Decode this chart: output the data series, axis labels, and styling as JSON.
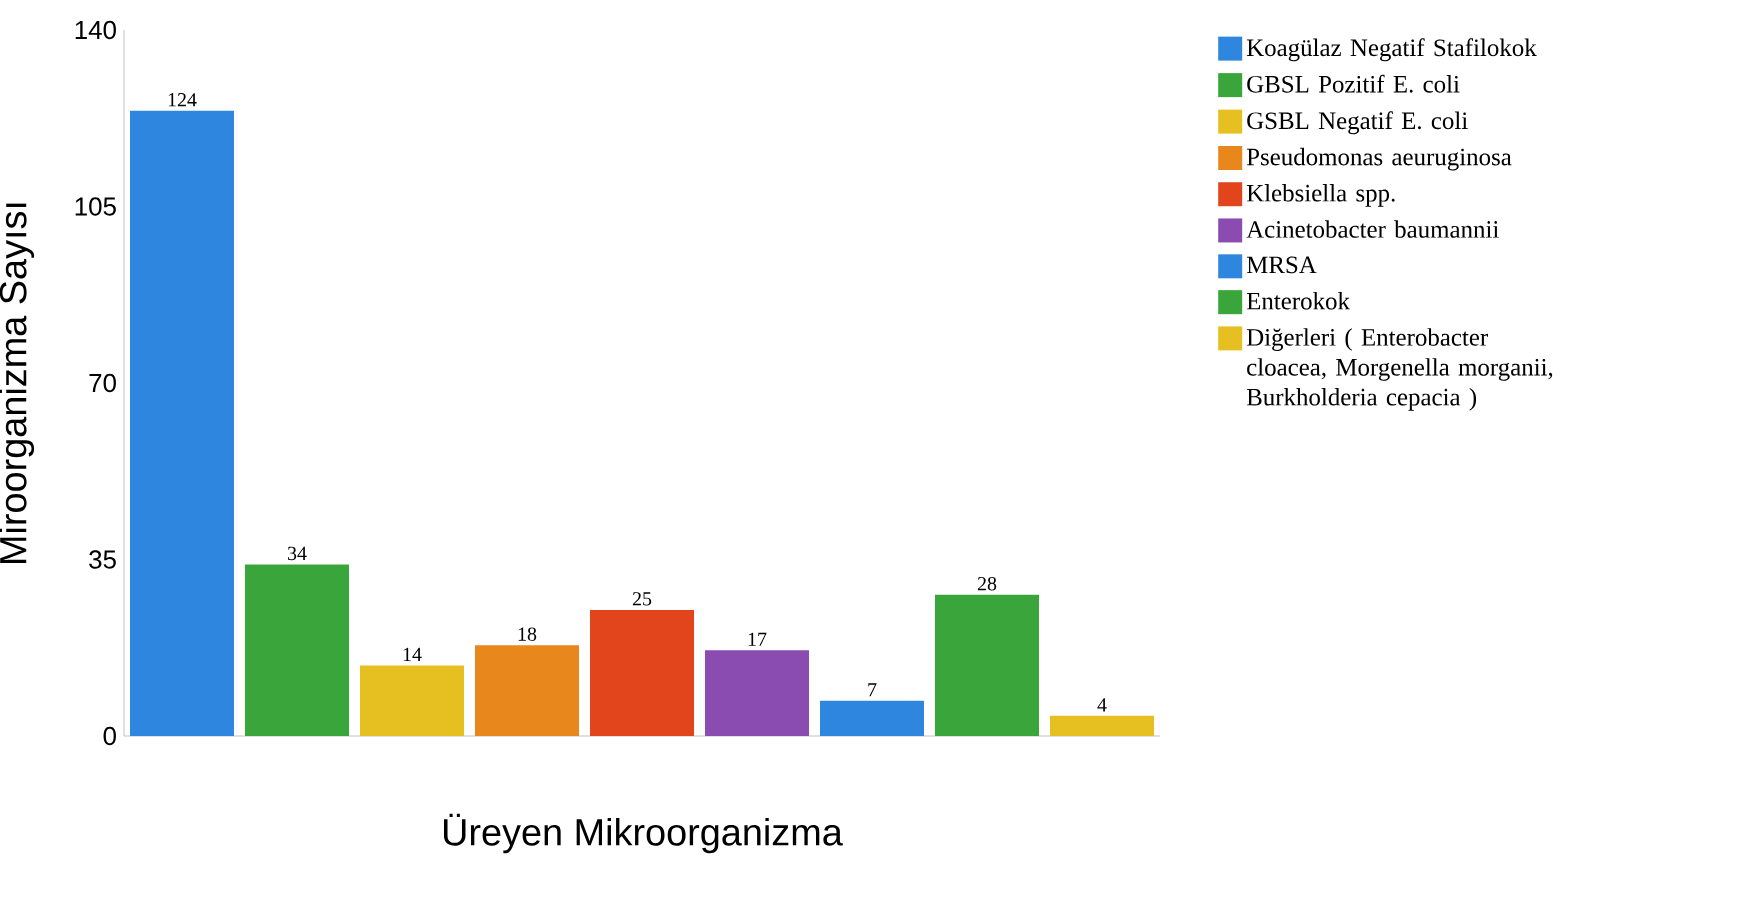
{
  "chart_data": {
    "type": "bar",
    "xlabel": "Üreyen Mikroorganizma",
    "ylabel": "Miroorganizma Sayısı",
    "categories": [
      null
    ],
    "series": [
      {
        "name": "Koagülaz Negatif Stafilokok",
        "color": "#2f86de",
        "values": [
          124
        ]
      },
      {
        "name": "GBSL Pozitif E. coli",
        "color": "#3aa53a",
        "values": [
          34
        ]
      },
      {
        "name": "GSBL Negatif E. coli",
        "color": "#e6c020",
        "values": [
          14
        ]
      },
      {
        "name": "Pseudomonas aeuruginosa",
        "color": "#e8871c",
        "values": [
          18
        ]
      },
      {
        "name": "Klebsiella spp.",
        "color": "#e2441c",
        "values": [
          25
        ]
      },
      {
        "name": "Acinetobacter baumannii",
        "color": "#8a4cb0",
        "values": [
          17
        ]
      },
      {
        "name": "MRSA",
        "color": "#2f86de",
        "values": [
          7
        ]
      },
      {
        "name": "Enterokok",
        "color": "#3aa53a",
        "values": [
          28
        ]
      },
      {
        "name": "Diğerleri ( Enterobacter cloacea, Morgenella morganii, Burkholderia cepacia )",
        "color": "#e6c020",
        "values": [
          4
        ]
      }
    ],
    "ylim": [
      0,
      140
    ],
    "yticks": [
      0,
      35,
      70,
      105,
      140
    ],
    "data_labels": true,
    "legend": "right"
  }
}
